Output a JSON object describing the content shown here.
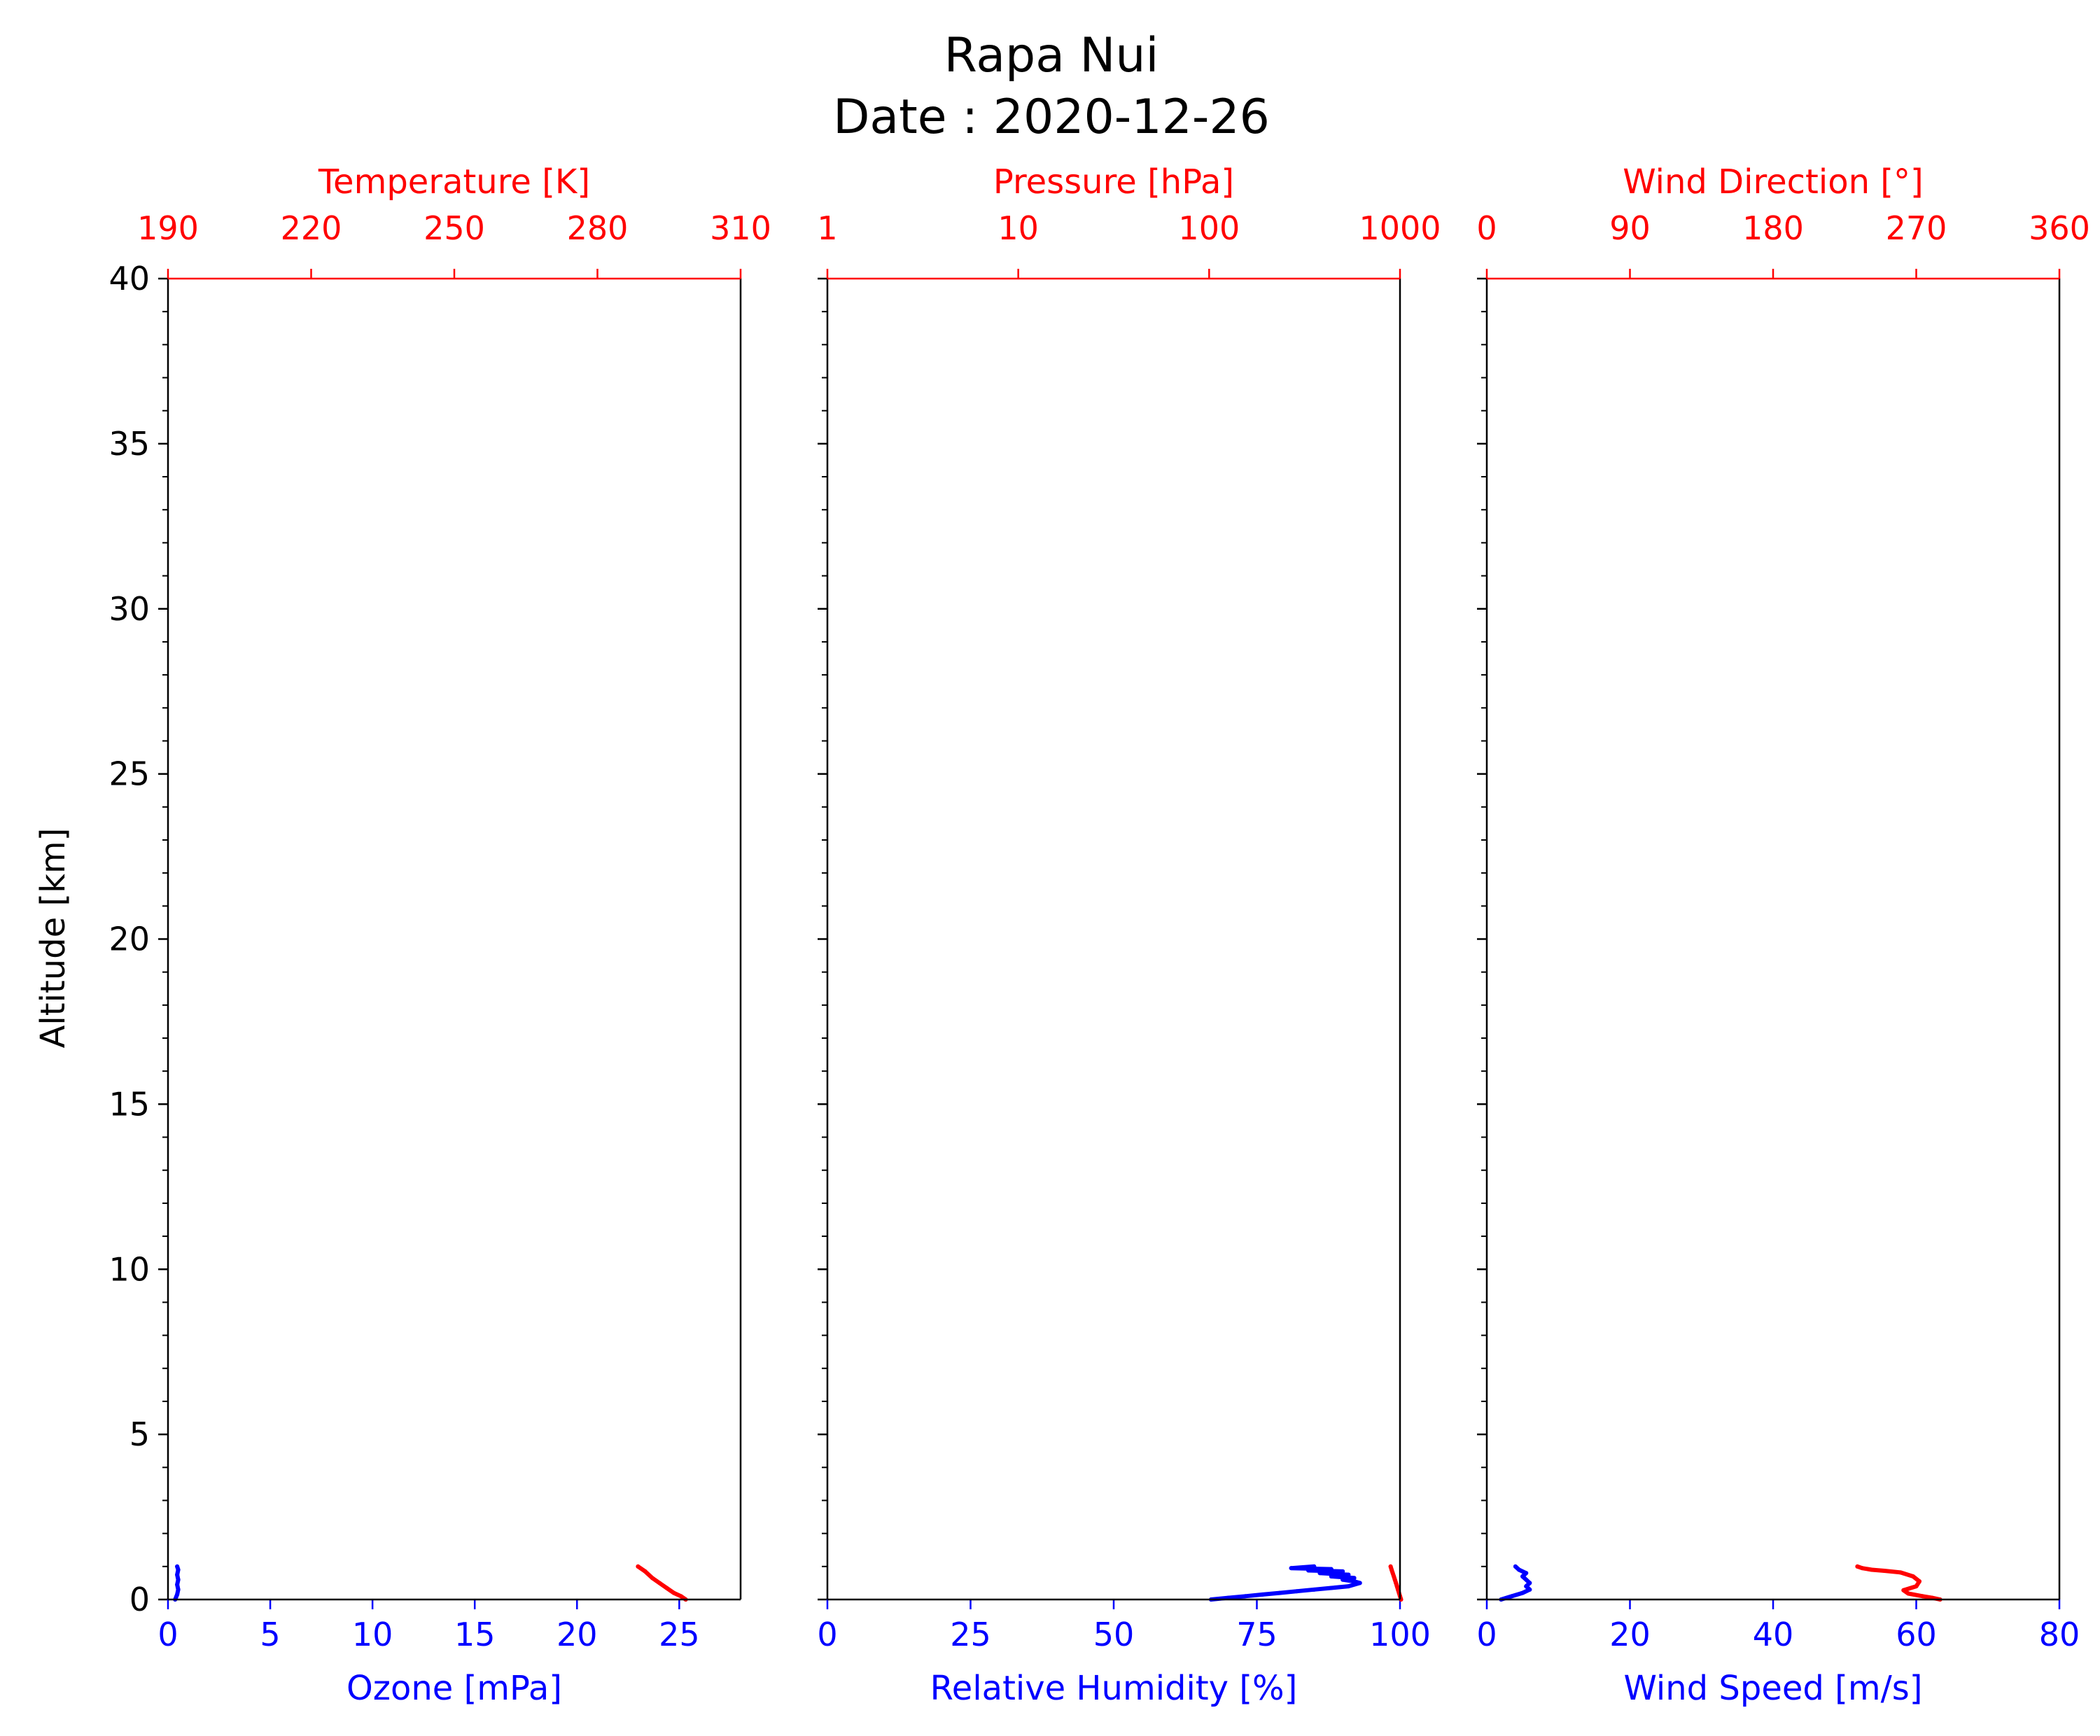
{
  "figure": {
    "title_line1": "Rapa Nui",
    "title_line2": "Date : 2020-12-26",
    "colors": {
      "primary": "#0000ff",
      "secondary": "#ff0000",
      "frame": "#000000"
    }
  },
  "chart_data": [
    {
      "type": "line",
      "ylabel": "Altitude [km]",
      "ylim": [
        0,
        40
      ],
      "yticks": [
        0,
        5,
        10,
        15,
        20,
        25,
        30,
        35,
        40
      ],
      "yticklabels": [
        "0",
        "5",
        "10",
        "15",
        "20",
        "25",
        "30",
        "35",
        "40"
      ],
      "bottom_axis": {
        "label": "Ozone [mPa]",
        "color": "#0000ff",
        "scale": "linear",
        "lim": [
          0,
          28
        ],
        "ticks": [
          0,
          5,
          10,
          15,
          20,
          25
        ],
        "ticklabels": [
          "0",
          "5",
          "10",
          "15",
          "20",
          "25"
        ]
      },
      "top_axis": {
        "label": "Temperature [K]",
        "color": "#ff0000",
        "scale": "linear",
        "lim": [
          190,
          310
        ],
        "ticks": [
          190,
          220,
          250,
          280,
          310
        ],
        "ticklabels": [
          "190",
          "220",
          "250",
          "280",
          "310"
        ]
      },
      "series": [
        {
          "axis": "bottom",
          "color": "#0000ff",
          "x": [
            0.35,
            0.45,
            0.5,
            0.45,
            0.5,
            0.45,
            0.5,
            0.45
          ],
          "y": [
            0.0,
            0.15,
            0.3,
            0.45,
            0.6,
            0.75,
            0.9,
            1.0
          ]
        },
        {
          "axis": "top",
          "color": "#ff0000",
          "x": [
            298.5,
            297.5,
            296.0,
            294.5,
            293.0,
            291.5,
            290.0,
            288.5
          ],
          "y": [
            0.0,
            0.1,
            0.2,
            0.35,
            0.5,
            0.65,
            0.85,
            1.0
          ]
        }
      ]
    },
    {
      "type": "line",
      "ylim": [
        0,
        40
      ],
      "yticks": [
        0,
        5,
        10,
        15,
        20,
        25,
        30,
        35,
        40
      ],
      "yticklabels": [],
      "bottom_axis": {
        "label": "Relative Humidity [%]",
        "color": "#0000ff",
        "scale": "linear",
        "lim": [
          0,
          100
        ],
        "ticks": [
          0,
          25,
          50,
          75,
          100
        ],
        "ticklabels": [
          "0",
          "25",
          "50",
          "75",
          "100"
        ]
      },
      "top_axis": {
        "label": "Pressure [hPa]",
        "color": "#ff0000",
        "scale": "log",
        "lim": [
          1,
          1000
        ],
        "ticks": [
          1,
          10,
          100,
          1000
        ],
        "ticklabels": [
          "1",
          "10",
          "100",
          "1000"
        ]
      },
      "series": [
        {
          "axis": "bottom",
          "color": "#0000ff",
          "x": [
            67,
            70,
            73,
            76,
            79,
            82,
            85,
            88,
            91,
            93,
            92,
            90,
            92,
            88,
            91,
            86,
            90,
            84,
            88,
            81,
            85
          ],
          "y": [
            0.0,
            0.05,
            0.1,
            0.15,
            0.2,
            0.25,
            0.3,
            0.35,
            0.4,
            0.5,
            0.55,
            0.6,
            0.65,
            0.7,
            0.75,
            0.8,
            0.85,
            0.88,
            0.92,
            0.95,
            1.0
          ]
        },
        {
          "axis": "top",
          "color": "#ff0000",
          "x": [
            1013,
            1000,
            988,
            976,
            964,
            952,
            940,
            928,
            916,
            904,
            893
          ],
          "y": [
            0.0,
            0.1,
            0.2,
            0.3,
            0.4,
            0.5,
            0.6,
            0.7,
            0.8,
            0.9,
            1.0
          ]
        }
      ]
    },
    {
      "type": "line",
      "ylim": [
        0,
        40
      ],
      "yticks": [
        0,
        5,
        10,
        15,
        20,
        25,
        30,
        35,
        40
      ],
      "yticklabels": [],
      "bottom_axis": {
        "label": "Wind Speed [m/s]",
        "color": "#0000ff",
        "scale": "linear",
        "lim": [
          0,
          80
        ],
        "ticks": [
          0,
          20,
          40,
          60,
          80
        ],
        "ticklabels": [
          "0",
          "20",
          "40",
          "60",
          "80"
        ]
      },
      "top_axis": {
        "label": "Wind Direction [°]",
        "color": "#ff0000",
        "scale": "linear",
        "lim": [
          0,
          360
        ],
        "ticks": [
          0,
          90,
          180,
          270,
          360
        ],
        "ticklabels": [
          "0",
          "90",
          "180",
          "270",
          "360"
        ]
      },
      "series": [
        {
          "axis": "bottom",
          "color": "#0000ff",
          "x": [
            2.0,
            3.5,
            5.0,
            6.0,
            5.5,
            6.0,
            5.5,
            5.0,
            5.5,
            4.5,
            4.0
          ],
          "y": [
            0.0,
            0.1,
            0.2,
            0.3,
            0.4,
            0.5,
            0.6,
            0.7,
            0.8,
            0.9,
            1.0
          ]
        },
        {
          "axis": "top",
          "color": "#ff0000",
          "x": [
            285,
            280,
            274,
            265,
            262,
            270,
            272,
            268,
            260,
            250,
            242,
            236,
            233
          ],
          "y": [
            0.0,
            0.05,
            0.1,
            0.18,
            0.28,
            0.4,
            0.55,
            0.7,
            0.82,
            0.87,
            0.9,
            0.95,
            1.0
          ]
        }
      ]
    }
  ]
}
